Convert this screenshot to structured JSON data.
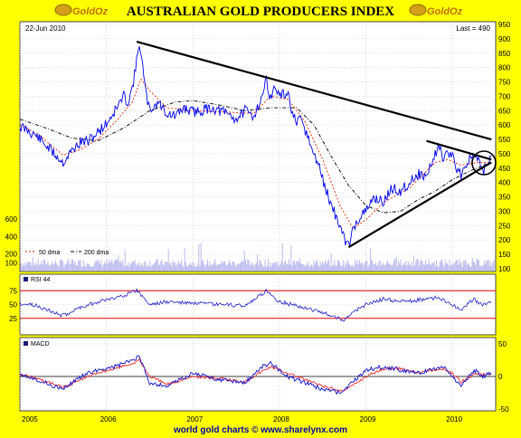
{
  "header": {
    "title": "AUSTRALIAN GOLD PRODUCERS INDEX",
    "logo_text": "GoldOz",
    "date": "22-Jun 2010",
    "last": "Last = 490"
  },
  "footer": "world gold charts © www.sharelynx.com",
  "colors": {
    "background": "#ffff00",
    "panel": "#ffffff",
    "price": "#0000ee",
    "volume": "#b8b8ee",
    "rsi": "#2020cc",
    "rsi_band": "#dd0000",
    "macd": "#1010cc",
    "signal": "#ee3030",
    "trendline": "#000000",
    "dma50": "#ee2200",
    "dma200": "#000000"
  },
  "chart_data": [
    {
      "type": "line",
      "name": "price",
      "x_ticks": [
        "2005",
        "2006",
        "2007",
        "2008",
        "2009",
        "2010"
      ],
      "ylim": [
        100,
        950
      ],
      "y_ticks_right": [
        100,
        150,
        200,
        250,
        300,
        350,
        400,
        450,
        500,
        550,
        600,
        650,
        700,
        750,
        800,
        850,
        900,
        950
      ],
      "volume_ticks_left": [
        100,
        200,
        400,
        600
      ],
      "legend": [
        "50 dma",
        "200 dma"
      ],
      "series": [
        {
          "name": "price",
          "points": [
            [
              2005.0,
              595
            ],
            [
              2005.1,
              580
            ],
            [
              2005.2,
              560
            ],
            [
              2005.3,
              530
            ],
            [
              2005.4,
              500
            ],
            [
              2005.5,
              470
            ],
            [
              2005.6,
              510
            ],
            [
              2005.7,
              540
            ],
            [
              2005.8,
              545
            ],
            [
              2005.9,
              575
            ],
            [
              2006.0,
              605
            ],
            [
              2006.1,
              650
            ],
            [
              2006.2,
              700
            ],
            [
              2006.25,
              680
            ],
            [
              2006.3,
              730
            ],
            [
              2006.35,
              820
            ],
            [
              2006.38,
              890
            ],
            [
              2006.42,
              800
            ],
            [
              2006.45,
              720
            ],
            [
              2006.5,
              650
            ],
            [
              2006.6,
              680
            ],
            [
              2006.7,
              640
            ],
            [
              2006.8,
              630
            ],
            [
              2006.9,
              660
            ],
            [
              2007.0,
              645
            ],
            [
              2007.1,
              650
            ],
            [
              2007.2,
              660
            ],
            [
              2007.3,
              650
            ],
            [
              2007.4,
              640
            ],
            [
              2007.5,
              620
            ],
            [
              2007.6,
              650
            ],
            [
              2007.7,
              630
            ],
            [
              2007.8,
              700
            ],
            [
              2007.85,
              760
            ],
            [
              2007.9,
              690
            ],
            [
              2007.95,
              735
            ],
            [
              2008.0,
              700
            ],
            [
              2008.1,
              710
            ],
            [
              2008.15,
              640
            ],
            [
              2008.2,
              600
            ],
            [
              2008.25,
              620
            ],
            [
              2008.3,
              580
            ],
            [
              2008.35,
              540
            ],
            [
              2008.4,
              490
            ],
            [
              2008.45,
              470
            ],
            [
              2008.5,
              410
            ],
            [
              2008.6,
              320
            ],
            [
              2008.7,
              250
            ],
            [
              2008.75,
              200
            ],
            [
              2008.8,
              185
            ],
            [
              2008.85,
              230
            ],
            [
              2008.9,
              270
            ],
            [
              2009.0,
              300
            ],
            [
              2009.1,
              350
            ],
            [
              2009.2,
              330
            ],
            [
              2009.3,
              380
            ],
            [
              2009.4,
              370
            ],
            [
              2009.5,
              400
            ],
            [
              2009.6,
              430
            ],
            [
              2009.7,
              420
            ],
            [
              2009.75,
              460
            ],
            [
              2009.8,
              500
            ],
            [
              2009.85,
              530
            ],
            [
              2009.9,
              470
            ],
            [
              2009.95,
              510
            ],
            [
              2010.0,
              490
            ],
            [
              2010.05,
              450
            ],
            [
              2010.1,
              430
            ],
            [
              2010.15,
              460
            ],
            [
              2010.2,
              480
            ],
            [
              2010.25,
              500
            ],
            [
              2010.3,
              470
            ],
            [
              2010.35,
              440
            ],
            [
              2010.4,
              460
            ],
            [
              2010.45,
              490
            ]
          ]
        },
        {
          "name": "50 dma",
          "points": [
            [
              2005.0,
              600
            ],
            [
              2005.2,
              570
            ],
            [
              2005.4,
              520
            ],
            [
              2005.5,
              495
            ],
            [
              2005.7,
              515
            ],
            [
              2005.9,
              550
            ],
            [
              2006.1,
              610
            ],
            [
              2006.3,
              680
            ],
            [
              2006.4,
              760
            ],
            [
              2006.5,
              720
            ],
            [
              2006.7,
              660
            ],
            [
              2007.0,
              650
            ],
            [
              2007.4,
              645
            ],
            [
              2007.7,
              640
            ],
            [
              2007.9,
              700
            ],
            [
              2008.1,
              690
            ],
            [
              2008.3,
              610
            ],
            [
              2008.5,
              480
            ],
            [
              2008.7,
              320
            ],
            [
              2008.85,
              240
            ],
            [
              2009.0,
              270
            ],
            [
              2009.2,
              330
            ],
            [
              2009.5,
              380
            ],
            [
              2009.8,
              470
            ],
            [
              2009.95,
              480
            ],
            [
              2010.1,
              460
            ],
            [
              2010.3,
              470
            ],
            [
              2010.45,
              470
            ]
          ]
        },
        {
          "name": "200 dma",
          "points": [
            [
              2005.0,
              620
            ],
            [
              2005.3,
              590
            ],
            [
              2005.6,
              555
            ],
            [
              2005.9,
              545
            ],
            [
              2006.2,
              590
            ],
            [
              2006.5,
              650
            ],
            [
              2006.8,
              680
            ],
            [
              2007.0,
              685
            ],
            [
              2007.3,
              670
            ],
            [
              2007.6,
              650
            ],
            [
              2007.9,
              660
            ],
            [
              2008.2,
              660
            ],
            [
              2008.4,
              600
            ],
            [
              2008.6,
              490
            ],
            [
              2008.8,
              390
            ],
            [
              2009.0,
              320
            ],
            [
              2009.2,
              295
            ],
            [
              2009.4,
              300
            ],
            [
              2009.6,
              340
            ],
            [
              2009.8,
              370
            ],
            [
              2010.0,
              410
            ],
            [
              2010.2,
              440
            ],
            [
              2010.45,
              470
            ]
          ]
        }
      ],
      "trendlines": [
        [
          [
            2006.35,
            890
          ],
          [
            2010.45,
            550
          ]
        ],
        [
          [
            2008.8,
            175
          ],
          [
            2010.45,
            470
          ]
        ],
        [
          [
            2009.7,
            545
          ],
          [
            2010.45,
            480
          ]
        ]
      ]
    },
    {
      "type": "line",
      "name": "RSI 44",
      "title": "RSI 44",
      "ylim": [
        0,
        100
      ],
      "y_ticks_left": [
        25,
        50,
        75
      ],
      "bands": [
        25,
        75
      ],
      "series": [
        {
          "name": "RSI 44",
          "points": [
            [
              2005.0,
              52
            ],
            [
              2005.2,
              48
            ],
            [
              2005.4,
              35
            ],
            [
              2005.5,
              30
            ],
            [
              2005.7,
              45
            ],
            [
              2005.9,
              55
            ],
            [
              2006.1,
              62
            ],
            [
              2006.3,
              72
            ],
            [
              2006.35,
              76
            ],
            [
              2006.5,
              50
            ],
            [
              2006.7,
              55
            ],
            [
              2007.0,
              52
            ],
            [
              2007.3,
              50
            ],
            [
              2007.6,
              48
            ],
            [
              2007.8,
              68
            ],
            [
              2007.85,
              76
            ],
            [
              2008.0,
              55
            ],
            [
              2008.2,
              48
            ],
            [
              2008.4,
              40
            ],
            [
              2008.6,
              30
            ],
            [
              2008.75,
              22
            ],
            [
              2008.9,
              40
            ],
            [
              2009.0,
              50
            ],
            [
              2009.2,
              60
            ],
            [
              2009.4,
              55
            ],
            [
              2009.6,
              58
            ],
            [
              2009.8,
              62
            ],
            [
              2009.95,
              55
            ],
            [
              2010.1,
              40
            ],
            [
              2010.25,
              60
            ],
            [
              2010.35,
              48
            ],
            [
              2010.45,
              55
            ]
          ]
        }
      ]
    },
    {
      "type": "line",
      "name": "MACD",
      "title": "MACD",
      "ylim": [
        -50,
        50
      ],
      "y_ticks_right": [
        -50,
        0,
        50
      ],
      "series": [
        {
          "name": "MACD",
          "points": [
            [
              2005.0,
              5
            ],
            [
              2005.2,
              -5
            ],
            [
              2005.4,
              -15
            ],
            [
              2005.5,
              -20
            ],
            [
              2005.7,
              0
            ],
            [
              2005.9,
              10
            ],
            [
              2006.1,
              15
            ],
            [
              2006.3,
              25
            ],
            [
              2006.38,
              30
            ],
            [
              2006.5,
              -10
            ],
            [
              2006.7,
              -15
            ],
            [
              2007.0,
              5
            ],
            [
              2007.3,
              -5
            ],
            [
              2007.6,
              -10
            ],
            [
              2007.8,
              15
            ],
            [
              2007.9,
              20
            ],
            [
              2008.1,
              0
            ],
            [
              2008.3,
              -10
            ],
            [
              2008.5,
              -20
            ],
            [
              2008.7,
              -25
            ],
            [
              2008.8,
              -15
            ],
            [
              2009.0,
              10
            ],
            [
              2009.2,
              15
            ],
            [
              2009.4,
              10
            ],
            [
              2009.6,
              5
            ],
            [
              2009.8,
              12
            ],
            [
              2009.9,
              15
            ],
            [
              2010.0,
              0
            ],
            [
              2010.1,
              -15
            ],
            [
              2010.25,
              10
            ],
            [
              2010.35,
              0
            ],
            [
              2010.45,
              5
            ]
          ]
        },
        {
          "name": "Signal",
          "points": [
            [
              2005.0,
              3
            ],
            [
              2005.2,
              -3
            ],
            [
              2005.4,
              -12
            ],
            [
              2005.5,
              -17
            ],
            [
              2005.7,
              -5
            ],
            [
              2005.9,
              6
            ],
            [
              2006.1,
              12
            ],
            [
              2006.3,
              20
            ],
            [
              2006.38,
              25
            ],
            [
              2006.5,
              0
            ],
            [
              2006.7,
              -12
            ],
            [
              2007.0,
              0
            ],
            [
              2007.3,
              -3
            ],
            [
              2007.6,
              -8
            ],
            [
              2007.8,
              8
            ],
            [
              2007.9,
              15
            ],
            [
              2008.1,
              5
            ],
            [
              2008.3,
              -5
            ],
            [
              2008.5,
              -15
            ],
            [
              2008.7,
              -22
            ],
            [
              2008.8,
              -18
            ],
            [
              2009.0,
              0
            ],
            [
              2009.2,
              12
            ],
            [
              2009.4,
              12
            ],
            [
              2009.6,
              7
            ],
            [
              2009.8,
              10
            ],
            [
              2009.9,
              12
            ],
            [
              2010.0,
              5
            ],
            [
              2010.1,
              -8
            ],
            [
              2010.25,
              3
            ],
            [
              2010.35,
              3
            ],
            [
              2010.45,
              3
            ]
          ]
        }
      ]
    }
  ]
}
